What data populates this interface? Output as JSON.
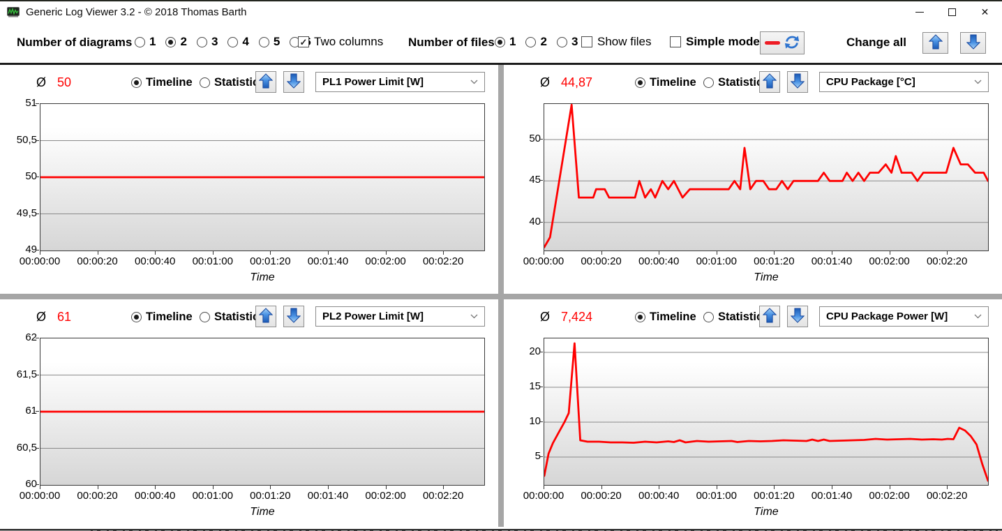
{
  "window": {
    "title": "Generic Log Viewer 3.2 - © 2018 Thomas Barth",
    "controls": {
      "minimize": "minimize",
      "maximize": "maximize",
      "close": "✕"
    }
  },
  "toolbar": {
    "diagrams_label": "Number of diagrams",
    "diagram_options": [
      "1",
      "2",
      "3",
      "4",
      "5",
      "6"
    ],
    "diagrams_selected": "2",
    "two_columns_label": "Two columns",
    "two_columns_checked": true,
    "files_label": "Number of files",
    "file_options": [
      "1",
      "2",
      "3"
    ],
    "files_selected": "1",
    "show_files_label": "Show files",
    "show_files_checked": false,
    "simple_mode_label": "Simple mode",
    "simple_mode_checked": false,
    "change_all_label": "Change all"
  },
  "panel_controls": {
    "avg_symbol": "Ø",
    "timeline_label": "Timeline",
    "statistic_label": "Statistic",
    "view_selected": "Timeline"
  },
  "panels": [
    {
      "avg": "50",
      "metric": "PL1 Power Limit [W]"
    },
    {
      "avg": "44,87",
      "metric": "CPU Package [°C]"
    },
    {
      "avg": "61",
      "metric": "PL2 Power Limit [W]"
    },
    {
      "avg": "7,424",
      "metric": "CPU Package Power [W]"
    }
  ],
  "icons": {
    "app_icon": "green-waveform-logo",
    "refresh_icon": "blue-double-arrow-refresh",
    "red_line_icon": "red-series-line-sample",
    "arrow_up_icon": "blue-up-arrow",
    "arrow_down_icon": "blue-down-arrow",
    "chevron_icon": "dropdown-chevron"
  },
  "colors": {
    "series": "#ff0000",
    "avg_value": "#ff0000",
    "splitter": "#a6a6a6",
    "grid_line": "#8a8a8a",
    "plot_border": "#3a3a3a",
    "arrow_blue": "#2e74cf",
    "red_sample": "#ee1c25"
  },
  "chart_data": [
    {
      "type": "line",
      "title": "PL1 Power Limit [W]",
      "xlabel": "Time",
      "ylabel": "",
      "xlim": [
        0,
        154
      ],
      "ylim": [
        49,
        51
      ],
      "x_tick_step_s": 20,
      "grid": "horizontal",
      "xticks": [
        "00:00:00",
        "00:00:20",
        "00:00:40",
        "00:01:00",
        "00:01:20",
        "00:01:40",
        "00:02:00",
        "00:02:20"
      ],
      "yticks": [
        {
          "v": 49,
          "label": "49"
        },
        {
          "v": 49.5,
          "label": "49,5"
        },
        {
          "v": 50,
          "label": "50"
        },
        {
          "v": 50.5,
          "label": "50,5"
        },
        {
          "v": 51,
          "label": "51"
        }
      ],
      "points": [
        [
          0,
          50
        ],
        [
          154,
          50
        ]
      ]
    },
    {
      "type": "line",
      "title": "CPU Package [°C]",
      "xlabel": "Time",
      "ylabel": "",
      "xlim": [
        0,
        154
      ],
      "ylim": [
        36.6,
        54.3
      ],
      "x_tick_step_s": 20,
      "grid": "horizontal",
      "xticks": [
        "00:00:00",
        "00:00:20",
        "00:00:40",
        "00:01:00",
        "00:01:20",
        "00:01:40",
        "00:02:00",
        "00:02:20"
      ],
      "yticks": [
        {
          "v": 40,
          "label": "40"
        },
        {
          "v": 45,
          "label": "45"
        },
        {
          "v": 50,
          "label": "50"
        }
      ],
      "points": [
        [
          0,
          37
        ],
        [
          2,
          38.2
        ],
        [
          9.5,
          54.2
        ],
        [
          12,
          43
        ],
        [
          17,
          43
        ],
        [
          18,
          44
        ],
        [
          21,
          44
        ],
        [
          22.5,
          43
        ],
        [
          31.5,
          43
        ],
        [
          33,
          45
        ],
        [
          35,
          43
        ],
        [
          37,
          44
        ],
        [
          38.5,
          43
        ],
        [
          41,
          45
        ],
        [
          43,
          44
        ],
        [
          45,
          45
        ],
        [
          48,
          43
        ],
        [
          50.5,
          44
        ],
        [
          64,
          44
        ],
        [
          66,
          45
        ],
        [
          68,
          44
        ],
        [
          69.5,
          49
        ],
        [
          71.5,
          44
        ],
        [
          73.5,
          45
        ],
        [
          76,
          45
        ],
        [
          78,
          44
        ],
        [
          80.5,
          44
        ],
        [
          82.5,
          45
        ],
        [
          84.5,
          44
        ],
        [
          86.5,
          45
        ],
        [
          95,
          45
        ],
        [
          97,
          46
        ],
        [
          99,
          45
        ],
        [
          103.5,
          45
        ],
        [
          105,
          46
        ],
        [
          107,
          45
        ],
        [
          109,
          46
        ],
        [
          111,
          45
        ],
        [
          113,
          46
        ],
        [
          116,
          46
        ],
        [
          118.5,
          47
        ],
        [
          120.5,
          46
        ],
        [
          122,
          48
        ],
        [
          124,
          46
        ],
        [
          127.5,
          46
        ],
        [
          129.5,
          45
        ],
        [
          131.5,
          46
        ],
        [
          139.5,
          46
        ],
        [
          142,
          49
        ],
        [
          144.5,
          47
        ],
        [
          147,
          47
        ],
        [
          149.5,
          46
        ],
        [
          152.5,
          46
        ],
        [
          154,
          45
        ]
      ]
    },
    {
      "type": "line",
      "title": "PL2 Power Limit [W]",
      "xlabel": "Time",
      "ylabel": "",
      "xlim": [
        0,
        154
      ],
      "ylim": [
        60,
        62
      ],
      "x_tick_step_s": 20,
      "grid": "horizontal",
      "xticks": [
        "00:00:00",
        "00:00:20",
        "00:00:40",
        "00:01:00",
        "00:01:20",
        "00:01:40",
        "00:02:00",
        "00:02:20"
      ],
      "yticks": [
        {
          "v": 60,
          "label": "60"
        },
        {
          "v": 60.5,
          "label": "60,5"
        },
        {
          "v": 61,
          "label": "61"
        },
        {
          "v": 61.5,
          "label": "61,5"
        },
        {
          "v": 62,
          "label": "62"
        }
      ],
      "points": [
        [
          0,
          61
        ],
        [
          154,
          61
        ]
      ]
    },
    {
      "type": "line",
      "title": "CPU Package Power [W]",
      "xlabel": "Time",
      "ylabel": "",
      "xlim": [
        0,
        154
      ],
      "ylim": [
        1,
        22
      ],
      "x_tick_step_s": 20,
      "grid": "horizontal",
      "xticks": [
        "00:00:00",
        "00:00:20",
        "00:00:40",
        "00:01:00",
        "00:01:20",
        "00:01:40",
        "00:02:00",
        "00:02:20"
      ],
      "yticks": [
        {
          "v": 5,
          "label": "5"
        },
        {
          "v": 10,
          "label": "10"
        },
        {
          "v": 15,
          "label": "15"
        },
        {
          "v": 20,
          "label": "20"
        }
      ],
      "points": [
        [
          0,
          2.3
        ],
        [
          1.5,
          5.5
        ],
        [
          3,
          7
        ],
        [
          5,
          8.5
        ],
        [
          7,
          10
        ],
        [
          8.5,
          11.3
        ],
        [
          10.5,
          21.3
        ],
        [
          12.5,
          7.4
        ],
        [
          15,
          7.2
        ],
        [
          19,
          7.2
        ],
        [
          23,
          7.1
        ],
        [
          27,
          7.1
        ],
        [
          31,
          7.05
        ],
        [
          35,
          7.2
        ],
        [
          39,
          7.1
        ],
        [
          43,
          7.25
        ],
        [
          45,
          7.15
        ],
        [
          47,
          7.4
        ],
        [
          49,
          7.1
        ],
        [
          53,
          7.3
        ],
        [
          57,
          7.2
        ],
        [
          61,
          7.25
        ],
        [
          65,
          7.3
        ],
        [
          67,
          7.15
        ],
        [
          71,
          7.3
        ],
        [
          75,
          7.25
        ],
        [
          79,
          7.3
        ],
        [
          83,
          7.4
        ],
        [
          87,
          7.35
        ],
        [
          91,
          7.3
        ],
        [
          93,
          7.5
        ],
        [
          95,
          7.3
        ],
        [
          97,
          7.5
        ],
        [
          99,
          7.3
        ],
        [
          103,
          7.35
        ],
        [
          107,
          7.4
        ],
        [
          111,
          7.45
        ],
        [
          115,
          7.6
        ],
        [
          119,
          7.5
        ],
        [
          123,
          7.55
        ],
        [
          127,
          7.6
        ],
        [
          131,
          7.5
        ],
        [
          135,
          7.55
        ],
        [
          138,
          7.5
        ],
        [
          140,
          7.6
        ],
        [
          142,
          7.55
        ],
        [
          144,
          9.2
        ],
        [
          146,
          8.8
        ],
        [
          148,
          8
        ],
        [
          150,
          6.8
        ],
        [
          152,
          4
        ],
        [
          154,
          1.6
        ]
      ]
    }
  ]
}
